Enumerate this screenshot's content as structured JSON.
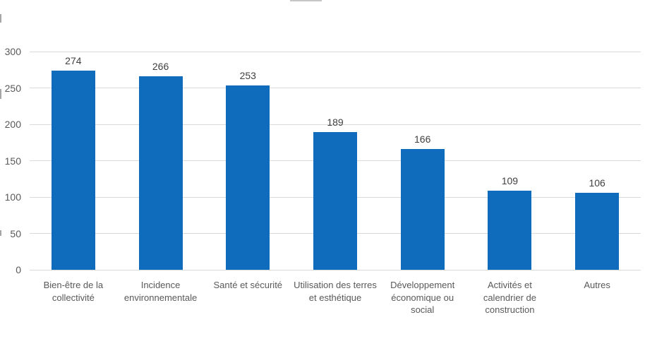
{
  "chart_data": {
    "type": "bar",
    "title": "",
    "xlabel": "",
    "ylabel": "",
    "categories": [
      "Bien-être de la collectivité",
      "Incidence environnementale",
      "Santé et sécurité",
      "Utilisation des terres et esthétique",
      "Développement économique ou social",
      "Activités et calendrier de construction",
      "Autres"
    ],
    "category_lines": [
      [
        "Bien-être de la",
        "collectivité"
      ],
      [
        "Incidence",
        "environnementale"
      ],
      [
        "Santé et sécurité"
      ],
      [
        "Utilisation des terres",
        "et esthétique"
      ],
      [
        "Développement",
        "économique ou",
        "social"
      ],
      [
        "Activités et",
        "calendrier de",
        "construction"
      ],
      [
        "Autres"
      ]
    ],
    "values": [
      274,
      266,
      253,
      189,
      166,
      109,
      106
    ],
    "data_labels": [
      "274",
      "266",
      "253",
      "189",
      "166",
      "109",
      "106"
    ],
    "ylim": [
      0,
      300
    ],
    "yticks": [
      0,
      50,
      100,
      150,
      200,
      250,
      300
    ],
    "ytick_labels": [
      "0",
      "50",
      "100",
      "150",
      "200",
      "250",
      "300"
    ],
    "grid": true,
    "legend_position": "top (clipped off screen)",
    "colors": {
      "bar": "#0f6cbd",
      "gridline": "#d9d9d9",
      "axis_text": "#595959",
      "data_label_text": "#404040",
      "background": "#ffffff"
    }
  }
}
